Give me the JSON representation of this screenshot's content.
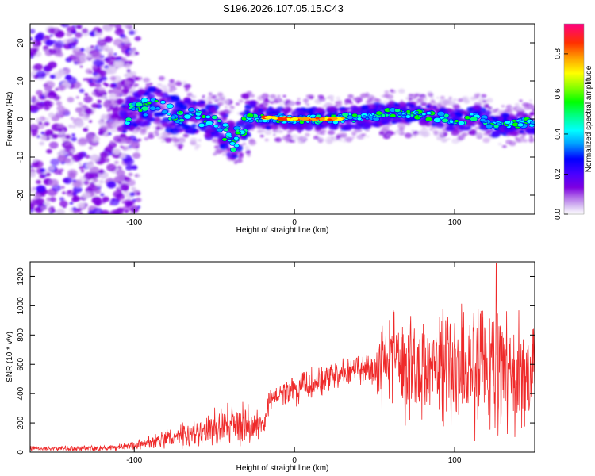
{
  "title": "S196.2026.107.05.15.C43",
  "chart_data": [
    {
      "type": "heatmap",
      "name": "spectrogram",
      "xlabel": "Height of straight line (km)",
      "ylabel": "Frequency (Hz)",
      "xlim": [
        -165,
        150
      ],
      "ylim": [
        -25,
        25
      ],
      "xticks": [
        -100,
        0,
        100
      ],
      "yticks": [
        -20,
        -10,
        0,
        10,
        20
      ],
      "noise_region_end_km": -103,
      "signal_track": [
        {
          "x": -110,
          "y": 0
        },
        {
          "x": -95,
          "y": 3
        },
        {
          "x": -85,
          "y": 3.5
        },
        {
          "x": -75,
          "y": 1
        },
        {
          "x": -60,
          "y": 0.5
        },
        {
          "x": -50,
          "y": -1
        },
        {
          "x": -42,
          "y": -4
        },
        {
          "x": -38,
          "y": -6
        },
        {
          "x": -30,
          "y": -1
        },
        {
          "x": -25,
          "y": 0.5
        },
        {
          "x": 0,
          "y": 0
        },
        {
          "x": 25,
          "y": 0
        },
        {
          "x": 45,
          "y": 0.5
        },
        {
          "x": 60,
          "y": 1.5
        },
        {
          "x": 75,
          "y": 1.5
        },
        {
          "x": 90,
          "y": 0.5
        },
        {
          "x": 105,
          "y": -0.5
        },
        {
          "x": 115,
          "y": 1
        },
        {
          "x": 125,
          "y": -2
        },
        {
          "x": 140,
          "y": -1
        },
        {
          "x": 150,
          "y": -1
        }
      ],
      "colorbar": {
        "label": "Normalized spectral amplitude",
        "range": [
          0,
          0.95
        ],
        "ticks": [
          "0.0",
          "0.2",
          "0.4",
          "0.6",
          "0.8"
        ],
        "colors": [
          "#ffffff",
          "#d9c2f3",
          "#b06be8",
          "#7d00e0",
          "#4a00ff",
          "#0000ff",
          "#00a0ff",
          "#00ffff",
          "#00ff80",
          "#00ff00",
          "#80ff00",
          "#ffff00",
          "#ffa000",
          "#ff3000",
          "#ff0080"
        ]
      }
    },
    {
      "type": "line",
      "name": "snr",
      "xlabel": "Height of straight line (km)",
      "ylabel": "SNR (10 * v/v)",
      "xlim": [
        -165,
        150
      ],
      "ylim": [
        0,
        1300
      ],
      "xticks": [
        -100,
        0,
        100
      ],
      "yticks": [
        0,
        200,
        400,
        600,
        800,
        1000,
        1200
      ],
      "color": "#ef2a2a",
      "trend": [
        {
          "x": -165,
          "base": 25,
          "spread": 20
        },
        {
          "x": -110,
          "base": 30,
          "spread": 25
        },
        {
          "x": -100,
          "base": 45,
          "spread": 40
        },
        {
          "x": -80,
          "base": 90,
          "spread": 80
        },
        {
          "x": -60,
          "base": 130,
          "spread": 120
        },
        {
          "x": -45,
          "base": 180,
          "spread": 160
        },
        {
          "x": -30,
          "base": 200,
          "spread": 170
        },
        {
          "x": -20,
          "base": 180,
          "spread": 100
        },
        {
          "x": -15,
          "base": 370,
          "spread": 90
        },
        {
          "x": 0,
          "base": 420,
          "spread": 120
        },
        {
          "x": 20,
          "base": 500,
          "spread": 130
        },
        {
          "x": 40,
          "base": 560,
          "spread": 120
        },
        {
          "x": 50,
          "base": 540,
          "spread": 140
        },
        {
          "x": 55,
          "base": 620,
          "spread": 380
        },
        {
          "x": 80,
          "base": 580,
          "spread": 480
        },
        {
          "x": 100,
          "base": 600,
          "spread": 500
        },
        {
          "x": 120,
          "base": 560,
          "spread": 520
        },
        {
          "x": 150,
          "base": 520,
          "spread": 500
        }
      ],
      "peak": {
        "x": 126,
        "y": 1290
      }
    }
  ]
}
